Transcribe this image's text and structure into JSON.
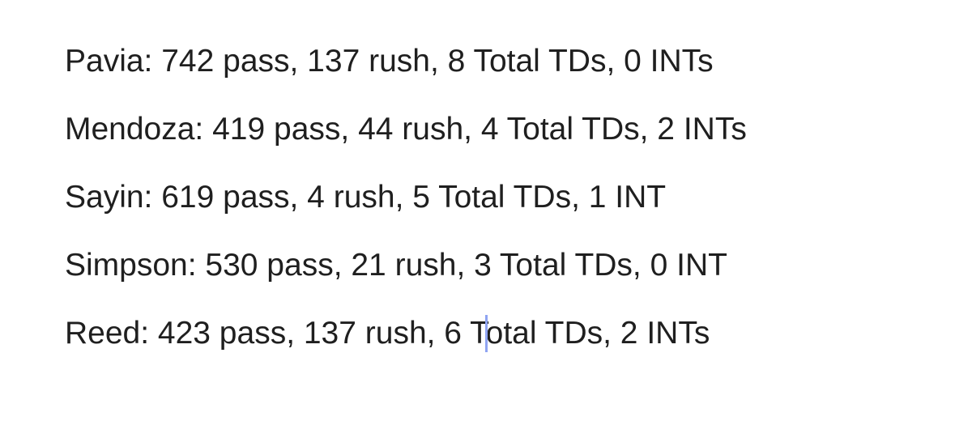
{
  "lines": [
    "Pavia: 742 pass, 137 rush, 8 Total TDs, 0 INTs",
    "Mendoza: 419 pass, 44 rush, 4 Total TDs, 2 INTs",
    "Sayin: 619 pass, 4 rush, 5 Total TDs, 1 INT",
    "Simpson: 530 pass, 21 rush, 3 Total TDs, 0 INT",
    "Reed: 423 pass, 137 rush, 6 Total TDs, 2 INTs"
  ]
}
